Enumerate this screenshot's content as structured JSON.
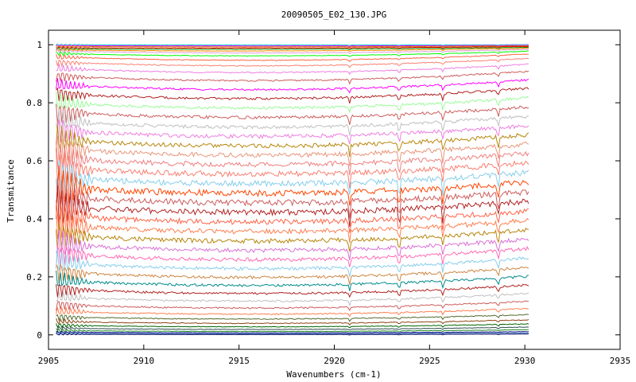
{
  "chart_data": {
    "type": "line",
    "title": "20090505_E02_130.JPG",
    "xlabel": "Wavenumbers (cm-1)",
    "ylabel": "Transmitance",
    "xlim": [
      2905,
      2935
    ],
    "ylim": [
      -0.05,
      1.05
    ],
    "x_ticks": [
      2905,
      2910,
      2915,
      2920,
      2925,
      2930,
      2935
    ],
    "y_ticks": [
      0,
      0.2,
      0.4,
      0.6,
      0.8,
      1
    ],
    "y_tick_labels": [
      "0",
      "0.2",
      "0.4",
      "0.6",
      "0.8",
      "1"
    ],
    "grid": false,
    "legend": "none",
    "x_range": [
      2905.4,
      2930.2
    ],
    "absorption_dips": [
      2920.8,
      2923.4,
      2925.7,
      2928.6
    ],
    "noise_region": [
      2905.4,
      2907.5
    ],
    "series_count": 46,
    "series": [
      {
        "left": 1.0,
        "mid": 0.999,
        "right": 1.0,
        "color": "#00ced1"
      },
      {
        "left": 0.997,
        "mid": 0.996,
        "right": 0.998,
        "color": "#ff00ff"
      },
      {
        "left": 0.994,
        "mid": 0.993,
        "right": 0.996,
        "color": "#b8860b"
      },
      {
        "left": 0.99,
        "mid": 0.989,
        "right": 0.994,
        "color": "#ff0000"
      },
      {
        "left": 0.986,
        "mid": 0.985,
        "right": 0.991,
        "color": "#008b00"
      },
      {
        "left": 0.982,
        "mid": 0.979,
        "right": 0.988,
        "color": "#ff8c00"
      },
      {
        "left": 0.978,
        "mid": 0.972,
        "right": 0.984,
        "color": "#dda0dd"
      },
      {
        "left": 0.97,
        "mid": 0.962,
        "right": 0.978,
        "color": "#00ff00"
      },
      {
        "left": 0.958,
        "mid": 0.947,
        "right": 0.968,
        "color": "#ff6347"
      },
      {
        "left": 0.94,
        "mid": 0.928,
        "right": 0.953,
        "color": "#fa8072"
      },
      {
        "left": 0.918,
        "mid": 0.905,
        "right": 0.933,
        "color": "#ee7ee0"
      },
      {
        "left": 0.892,
        "mid": 0.877,
        "right": 0.908,
        "color": "#cd5c5c"
      },
      {
        "left": 0.862,
        "mid": 0.846,
        "right": 0.879,
        "color": "#ff00ff"
      },
      {
        "left": 0.832,
        "mid": 0.815,
        "right": 0.85,
        "color": "#b22222"
      },
      {
        "left": 0.8,
        "mid": 0.783,
        "right": 0.818,
        "color": "#98fb98"
      },
      {
        "left": 0.768,
        "mid": 0.75,
        "right": 0.786,
        "color": "#cd5c5c"
      },
      {
        "left": 0.736,
        "mid": 0.717,
        "right": 0.754,
        "color": "#c0c0c0"
      },
      {
        "left": 0.704,
        "mid": 0.685,
        "right": 0.722,
        "color": "#ee7ee0"
      },
      {
        "left": 0.672,
        "mid": 0.652,
        "right": 0.69,
        "color": "#b8860b"
      },
      {
        "left": 0.64,
        "mid": 0.62,
        "right": 0.658,
        "color": "#e9967a"
      },
      {
        "left": 0.608,
        "mid": 0.588,
        "right": 0.626,
        "color": "#f08080"
      },
      {
        "left": 0.575,
        "mid": 0.555,
        "right": 0.593,
        "color": "#fa8072"
      },
      {
        "left": 0.542,
        "mid": 0.522,
        "right": 0.56,
        "color": "#87ceeb"
      },
      {
        "left": 0.509,
        "mid": 0.489,
        "right": 0.527,
        "color": "#ff4500"
      },
      {
        "left": 0.476,
        "mid": 0.456,
        "right": 0.494,
        "color": "#cd5c5c"
      },
      {
        "left": 0.443,
        "mid": 0.423,
        "right": 0.461,
        "color": "#b22222"
      },
      {
        "left": 0.41,
        "mid": 0.39,
        "right": 0.428,
        "color": "#ff6347"
      },
      {
        "left": 0.377,
        "mid": 0.357,
        "right": 0.395,
        "color": "#ff7f50"
      },
      {
        "left": 0.344,
        "mid": 0.324,
        "right": 0.362,
        "color": "#b8860b"
      },
      {
        "left": 0.312,
        "mid": 0.292,
        "right": 0.33,
        "color": "#da70d6"
      },
      {
        "left": 0.28,
        "mid": 0.26,
        "right": 0.298,
        "color": "#ff69b4"
      },
      {
        "left": 0.248,
        "mid": 0.229,
        "right": 0.265,
        "color": "#87ceeb"
      },
      {
        "left": 0.217,
        "mid": 0.199,
        "right": 0.233,
        "color": "#cd853f"
      },
      {
        "left": 0.187,
        "mid": 0.171,
        "right": 0.202,
        "color": "#008b8b"
      },
      {
        "left": 0.158,
        "mid": 0.143,
        "right": 0.172,
        "color": "#b22222"
      },
      {
        "left": 0.13,
        "mid": 0.117,
        "right": 0.143,
        "color": "#c0c0c0"
      },
      {
        "left": 0.104,
        "mid": 0.093,
        "right": 0.116,
        "color": "#cd5c5c"
      },
      {
        "left": 0.081,
        "mid": 0.072,
        "right": 0.091,
        "color": "#ff7f50"
      },
      {
        "left": 0.062,
        "mid": 0.055,
        "right": 0.07,
        "color": "#556b2f"
      },
      {
        "left": 0.046,
        "mid": 0.04,
        "right": 0.052,
        "color": "#8b4513"
      },
      {
        "left": 0.033,
        "mid": 0.028,
        "right": 0.038,
        "color": "#006400"
      },
      {
        "left": 0.023,
        "mid": 0.019,
        "right": 0.027,
        "color": "#2f4f4f"
      },
      {
        "left": 0.015,
        "mid": 0.012,
        "right": 0.018,
        "color": "#228b22"
      },
      {
        "left": 0.009,
        "mid": 0.007,
        "right": 0.011,
        "color": "#00008b"
      },
      {
        "left": 0.005,
        "mid": 0.004,
        "right": 0.006,
        "color": "#4682b4"
      },
      {
        "left": 0.002,
        "mid": 0.001,
        "right": 0.003,
        "color": "#191970"
      }
    ]
  }
}
